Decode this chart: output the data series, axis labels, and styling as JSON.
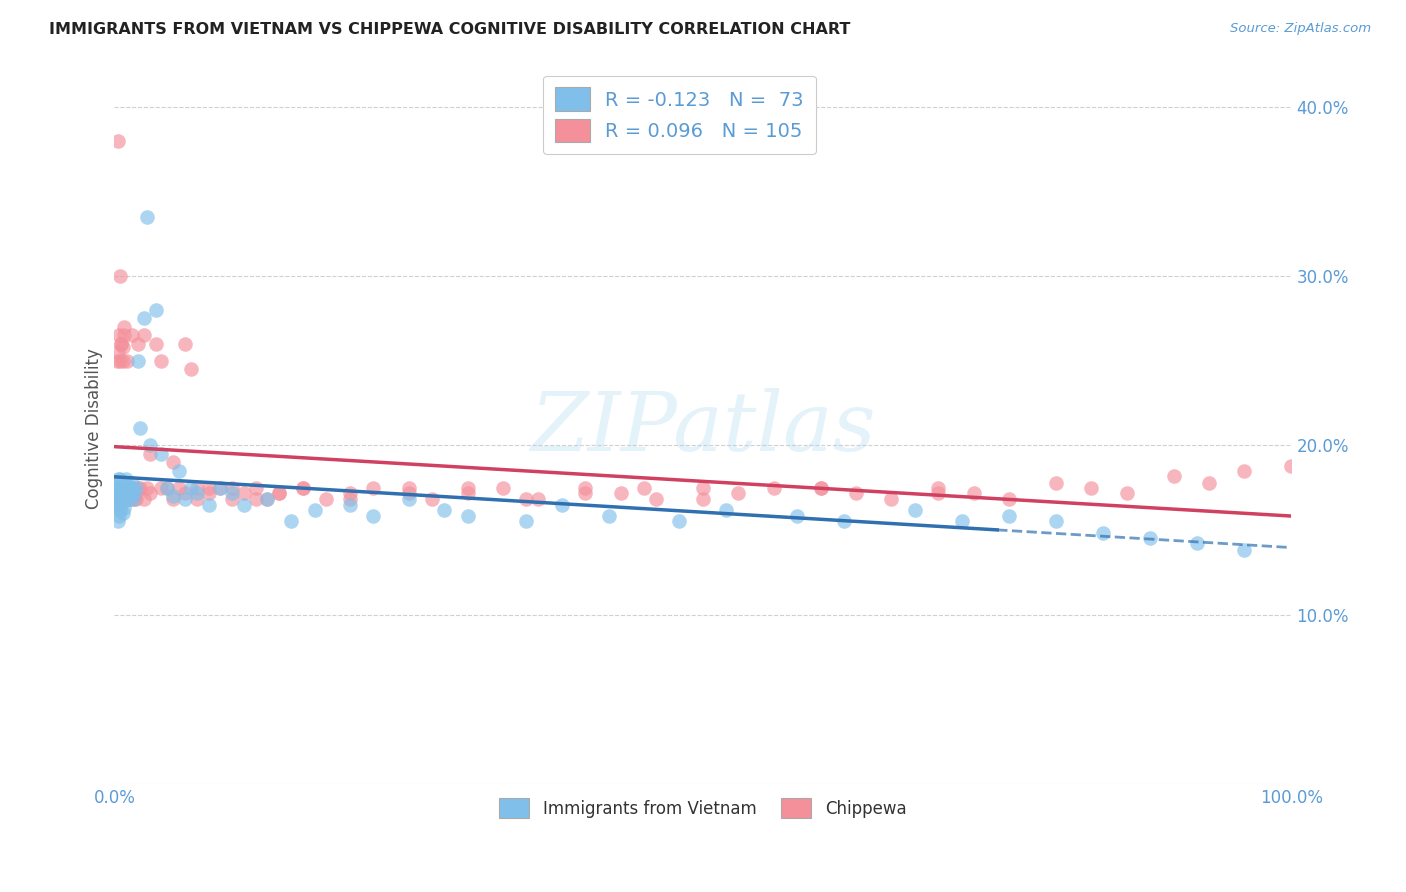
{
  "title": "IMMIGRANTS FROM VIETNAM VS CHIPPEWA COGNITIVE DISABILITY CORRELATION CHART",
  "source": "Source: ZipAtlas.com",
  "ylabel": "Cognitive Disability",
  "xlim": [
    0.0,
    1.0
  ],
  "ylim": [
    0.0,
    0.42
  ],
  "legend_r_vietnam": "-0.123",
  "legend_n_vietnam": "73",
  "legend_r_chippewa": "0.096",
  "legend_n_chippewa": "105",
  "color_vietnam": "#7fbfea",
  "color_chippewa": "#f4909a",
  "trendline_vietnam_color": "#3070b0",
  "trendline_chippewa_color": "#d04060",
  "background_color": "#ffffff",
  "watermark": "ZIPatlas",
  "title_color": "#222222",
  "axis_color": "#5b9bd5",
  "ylabel_color": "#555555",
  "grid_color": "#d0d0d0",
  "vietnam_x": [
    0.001,
    0.002,
    0.002,
    0.003,
    0.003,
    0.003,
    0.004,
    0.004,
    0.004,
    0.005,
    0.005,
    0.005,
    0.006,
    0.006,
    0.007,
    0.007,
    0.008,
    0.008,
    0.009,
    0.009,
    0.01,
    0.01,
    0.011,
    0.012,
    0.013,
    0.014,
    0.015,
    0.016,
    0.017,
    0.018,
    0.02,
    0.022,
    0.025,
    0.028,
    0.03,
    0.035,
    0.04,
    0.045,
    0.05,
    0.055,
    0.06,
    0.065,
    0.07,
    0.08,
    0.09,
    0.1,
    0.11,
    0.13,
    0.15,
    0.17,
    0.2,
    0.22,
    0.25,
    0.28,
    0.3,
    0.35,
    0.38,
    0.42,
    0.48,
    0.52,
    0.58,
    0.62,
    0.68,
    0.72,
    0.76,
    0.8,
    0.84,
    0.88,
    0.92,
    0.96,
    0.003,
    0.004,
    0.005
  ],
  "vietnam_y": [
    0.175,
    0.178,
    0.172,
    0.18,
    0.168,
    0.165,
    0.175,
    0.17,
    0.162,
    0.172,
    0.168,
    0.18,
    0.175,
    0.165,
    0.172,
    0.16,
    0.178,
    0.163,
    0.175,
    0.168,
    0.18,
    0.172,
    0.175,
    0.168,
    0.172,
    0.175,
    0.178,
    0.168,
    0.172,
    0.175,
    0.25,
    0.21,
    0.275,
    0.335,
    0.2,
    0.28,
    0.195,
    0.175,
    0.17,
    0.185,
    0.168,
    0.175,
    0.172,
    0.165,
    0.175,
    0.172,
    0.165,
    0.168,
    0.155,
    0.162,
    0.165,
    0.158,
    0.168,
    0.162,
    0.158,
    0.155,
    0.165,
    0.158,
    0.155,
    0.162,
    0.158,
    0.155,
    0.162,
    0.155,
    0.158,
    0.155,
    0.148,
    0.145,
    0.142,
    0.138,
    0.155,
    0.158,
    0.162
  ],
  "chippewa_x": [
    0.001,
    0.002,
    0.002,
    0.003,
    0.003,
    0.004,
    0.004,
    0.005,
    0.005,
    0.006,
    0.006,
    0.007,
    0.007,
    0.008,
    0.008,
    0.009,
    0.01,
    0.01,
    0.011,
    0.012,
    0.013,
    0.014,
    0.015,
    0.016,
    0.017,
    0.018,
    0.02,
    0.022,
    0.025,
    0.028,
    0.03,
    0.035,
    0.04,
    0.045,
    0.05,
    0.055,
    0.06,
    0.065,
    0.07,
    0.08,
    0.09,
    0.1,
    0.11,
    0.12,
    0.13,
    0.14,
    0.16,
    0.18,
    0.2,
    0.22,
    0.25,
    0.27,
    0.3,
    0.33,
    0.36,
    0.4,
    0.43,
    0.46,
    0.5,
    0.53,
    0.56,
    0.6,
    0.63,
    0.66,
    0.7,
    0.73,
    0.76,
    0.8,
    0.83,
    0.86,
    0.9,
    0.93,
    0.96,
    1.0,
    0.003,
    0.004,
    0.005,
    0.006,
    0.007,
    0.008,
    0.01,
    0.012,
    0.015,
    0.018,
    0.02,
    0.025,
    0.03,
    0.04,
    0.05,
    0.06,
    0.07,
    0.08,
    0.1,
    0.12,
    0.14,
    0.16,
    0.2,
    0.25,
    0.3,
    0.35,
    0.4,
    0.45,
    0.5,
    0.6,
    0.7
  ],
  "chippewa_y": [
    0.175,
    0.25,
    0.165,
    0.255,
    0.17,
    0.265,
    0.175,
    0.25,
    0.17,
    0.26,
    0.172,
    0.25,
    0.168,
    0.265,
    0.175,
    0.17,
    0.175,
    0.168,
    0.25,
    0.175,
    0.168,
    0.172,
    0.265,
    0.175,
    0.168,
    0.172,
    0.26,
    0.175,
    0.265,
    0.175,
    0.195,
    0.26,
    0.25,
    0.175,
    0.19,
    0.175,
    0.26,
    0.245,
    0.175,
    0.175,
    0.175,
    0.168,
    0.172,
    0.175,
    0.168,
    0.172,
    0.175,
    0.168,
    0.172,
    0.175,
    0.175,
    0.168,
    0.172,
    0.175,
    0.168,
    0.175,
    0.172,
    0.168,
    0.175,
    0.172,
    0.175,
    0.175,
    0.172,
    0.168,
    0.175,
    0.172,
    0.168,
    0.178,
    0.175,
    0.172,
    0.182,
    0.178,
    0.185,
    0.188,
    0.38,
    0.17,
    0.3,
    0.26,
    0.258,
    0.27,
    0.17,
    0.168,
    0.172,
    0.168,
    0.175,
    0.168,
    0.172,
    0.175,
    0.168,
    0.172,
    0.168,
    0.172,
    0.175,
    0.168,
    0.172,
    0.175,
    0.168,
    0.172,
    0.175,
    0.168,
    0.172,
    0.175,
    0.168,
    0.175,
    0.172
  ]
}
